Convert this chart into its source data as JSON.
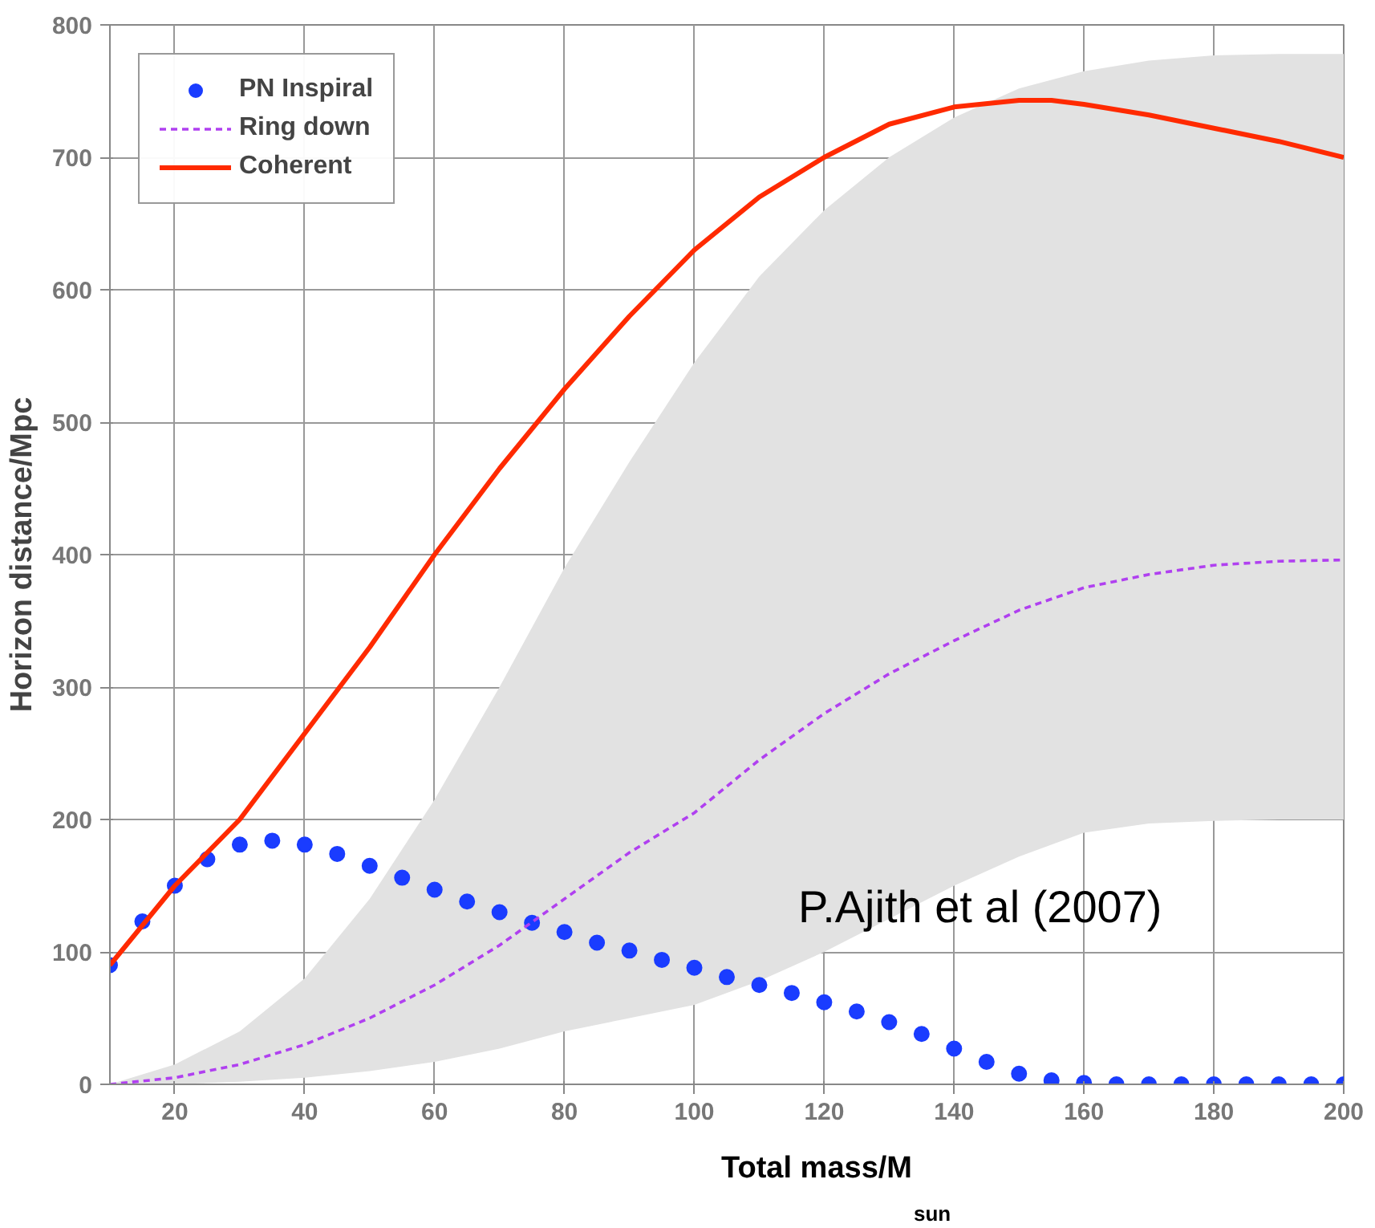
{
  "chart_data": {
    "type": "line",
    "xlabel": "Total mass/M$_{sun}$",
    "ylabel": "Horizon distance/Mpc",
    "xlim": [
      10,
      200
    ],
    "ylim": [
      0,
      800
    ],
    "xticks": [
      20,
      40,
      60,
      80,
      100,
      120,
      140,
      160,
      180,
      200
    ],
    "yticks": [
      0,
      100,
      200,
      300,
      400,
      500,
      600,
      700,
      800
    ],
    "grid": true,
    "legend": "top left",
    "annotations": [
      "P.Ajith et al (2007)"
    ],
    "series": [
      {
        "name": "PN Inspiral",
        "type": "scatter",
        "marker": "circle",
        "color": "#1a3cff",
        "x": [
          10,
          15,
          20,
          25,
          30,
          35,
          40,
          45,
          50,
          55,
          60,
          65,
          70,
          75,
          80,
          85,
          90,
          95,
          100,
          105,
          110,
          115,
          120,
          125,
          130,
          135,
          140,
          145,
          150,
          155,
          160,
          165,
          170,
          175,
          180,
          185,
          190,
          195,
          200
        ],
        "values": [
          90,
          123,
          150,
          170,
          181,
          184,
          181,
          174,
          165,
          156,
          147,
          138,
          130,
          122,
          115,
          107,
          101,
          94,
          88,
          81,
          75,
          69,
          62,
          55,
          47,
          38,
          27,
          17,
          8,
          3,
          1,
          0,
          0,
          0,
          0,
          0,
          0,
          0,
          0
        ]
      },
      {
        "name": "Ring down",
        "line_style": "dashed",
        "color": "#b040f0",
        "x": [
          10,
          20,
          30,
          40,
          50,
          60,
          70,
          80,
          90,
          100,
          110,
          120,
          130,
          140,
          150,
          160,
          170,
          180,
          190,
          200
        ],
        "values": [
          0,
          5,
          15,
          30,
          50,
          75,
          105,
          140,
          175,
          205,
          245,
          280,
          310,
          335,
          358,
          375,
          385,
          392,
          395,
          396
        ],
        "lower": [
          0,
          0,
          2,
          5,
          10,
          17,
          27,
          40,
          50,
          60,
          78,
          100,
          125,
          150,
          172,
          190,
          197,
          199,
          200,
          200
        ],
        "upper": [
          0,
          15,
          40,
          80,
          140,
          215,
          300,
          390,
          470,
          545,
          610,
          660,
          700,
          730,
          752,
          765,
          773,
          777,
          778,
          778
        ]
      },
      {
        "name": "Coherent",
        "line_style": "solid",
        "color": "#ff2a00",
        "x": [
          10,
          20,
          30,
          40,
          50,
          60,
          70,
          80,
          90,
          100,
          110,
          120,
          130,
          140,
          150,
          155,
          160,
          170,
          180,
          190,
          200
        ],
        "values": [
          90,
          150,
          200,
          265,
          330,
          400,
          465,
          525,
          580,
          630,
          670,
          700,
          725,
          738,
          743,
          743,
          740,
          732,
          722,
          712,
          700
        ]
      }
    ]
  }
}
